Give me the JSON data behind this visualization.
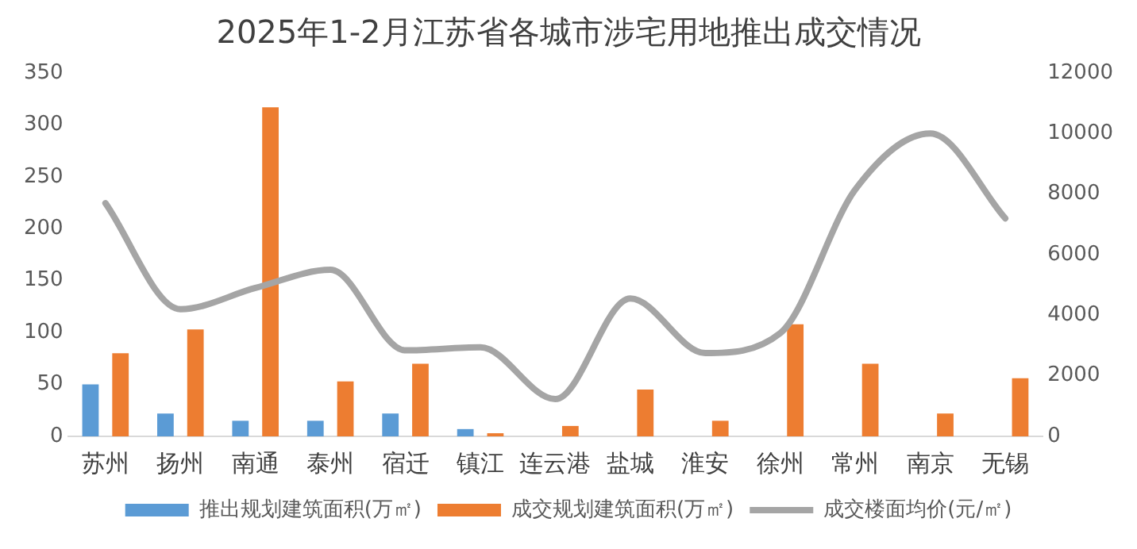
{
  "chart_data": {
    "type": "bar",
    "title": "2025年1-2月江苏省各城市涉宅用地推出成交情况",
    "categories": [
      "苏州",
      "扬州",
      "南通",
      "泰州",
      "宿迁",
      "镇江",
      "连云港",
      "盐城",
      "淮安",
      "徐州",
      "常州",
      "南京",
      "无锡"
    ],
    "series": [
      {
        "name": "推出规划建筑面积(万㎡)",
        "color": "#5b9bd5",
        "values": [
          50,
          22,
          15,
          15,
          22,
          7,
          null,
          null,
          null,
          null,
          null,
          null,
          null
        ]
      },
      {
        "name": "成交规划建筑面积(万㎡)",
        "color": "#ed7d31",
        "values": [
          80,
          103,
          317,
          53,
          70,
          3,
          10,
          45,
          15,
          108,
          70,
          22,
          56
        ]
      },
      {
        "name": "成交楼面均价(元/㎡)",
        "type": "line",
        "axis": "y2",
        "color": "#a5a5a5",
        "values": [
          7700,
          4200,
          4900,
          5500,
          2840,
          2940,
          1230,
          4550,
          2750,
          3410,
          8150,
          10000,
          7200
        ]
      }
    ],
    "ylim": [
      0,
      350
    ],
    "yticks": [
      0,
      50,
      100,
      150,
      200,
      250,
      300,
      350
    ],
    "y2lim": [
      0,
      12000
    ],
    "y2ticks": [
      0,
      2000,
      4000,
      6000,
      8000,
      10000,
      12000
    ],
    "grid": false,
    "legend": "bottom",
    "marker": "none",
    "line_style": "solid"
  }
}
